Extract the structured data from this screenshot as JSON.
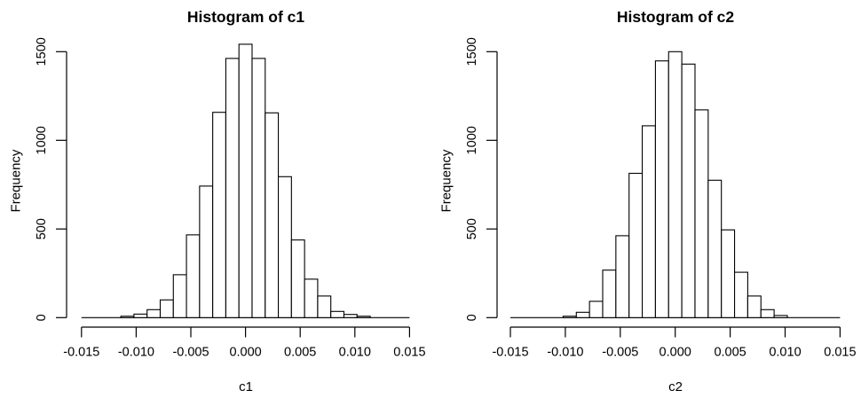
{
  "figure": {
    "background": "#ffffff",
    "text_color": "#000000",
    "line_color": "#000000",
    "bar_fill": "#ffffff"
  },
  "chart_data": [
    {
      "type": "bar",
      "subtype": "histogram",
      "title": "Histogram of c1",
      "xlabel": "c1",
      "ylabel": "Frequency",
      "xlim": [
        -0.015,
        0.015
      ],
      "ylim": [
        0,
        1500
      ],
      "x_tick_values": [
        -0.015,
        -0.01,
        -0.005,
        0.0,
        0.005,
        0.01,
        0.015
      ],
      "x_tick_labels": [
        "-0.015",
        "-0.010",
        "-0.005",
        "0.000",
        "0.005",
        "0.010",
        "0.015"
      ],
      "y_tick_values": [
        0,
        500,
        1000,
        1500
      ],
      "y_tick_labels": [
        "0",
        "500",
        "1000",
        "1500"
      ],
      "grid": false,
      "legend": false,
      "bin_width": 0.0012,
      "bin_centers": [
        -0.0108,
        -0.0096,
        -0.0084,
        -0.0072,
        -0.006,
        -0.0048,
        -0.0036,
        -0.0024,
        -0.0012,
        0.0,
        0.0012,
        0.0024,
        0.0036,
        0.0048,
        0.006,
        0.0072,
        0.0084,
        0.0096,
        0.0108
      ],
      "counts": [
        8,
        20,
        45,
        100,
        242,
        467,
        742,
        1158,
        1462,
        1542,
        1462,
        1155,
        795,
        438,
        217,
        122,
        35,
        18,
        8
      ]
    },
    {
      "type": "bar",
      "subtype": "histogram",
      "title": "Histogram of c2",
      "xlabel": "c2",
      "ylabel": "Frequency",
      "xlim": [
        -0.015,
        0.015
      ],
      "ylim": [
        0,
        1500
      ],
      "x_tick_values": [
        -0.015,
        -0.01,
        -0.005,
        0.0,
        0.005,
        0.01,
        0.015
      ],
      "x_tick_labels": [
        "-0.015",
        "-0.010",
        "-0.005",
        "0.000",
        "0.005",
        "0.010",
        "0.015"
      ],
      "y_tick_values": [
        0,
        500,
        1000,
        1500
      ],
      "y_tick_labels": [
        "0",
        "500",
        "1000",
        "1500"
      ],
      "grid": false,
      "legend": false,
      "bin_width": 0.0012,
      "bin_centers": [
        -0.0096,
        -0.0084,
        -0.0072,
        -0.006,
        -0.0048,
        -0.0036,
        -0.0024,
        -0.0012,
        0.0,
        0.0012,
        0.0024,
        0.0036,
        0.0048,
        0.006,
        0.0072,
        0.0084,
        0.0096
      ],
      "counts": [
        8,
        30,
        92,
        268,
        462,
        814,
        1082,
        1448,
        1500,
        1430,
        1172,
        775,
        495,
        256,
        122,
        45,
        12
      ]
    }
  ]
}
